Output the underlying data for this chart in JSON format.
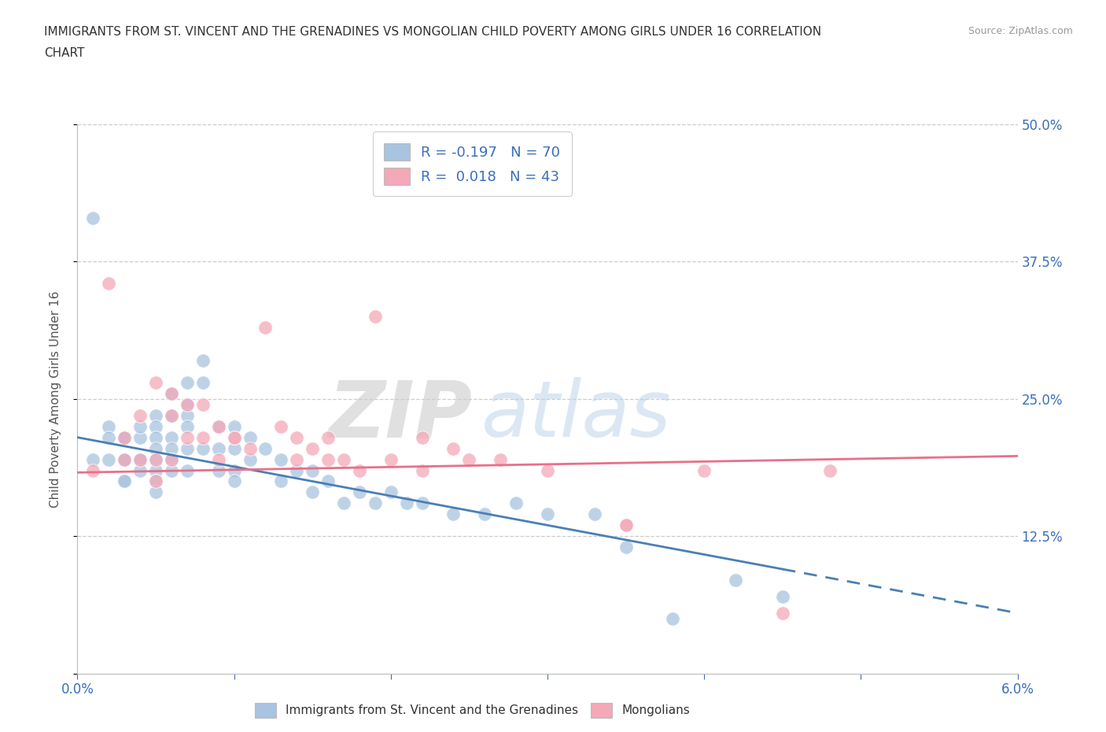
{
  "title_line1": "IMMIGRANTS FROM ST. VINCENT AND THE GRENADINES VS MONGOLIAN CHILD POVERTY AMONG GIRLS UNDER 16 CORRELATION",
  "title_line2": "CHART",
  "source_text": "Source: ZipAtlas.com",
  "ylabel": "Child Poverty Among Girls Under 16",
  "xlim": [
    0.0,
    0.06
  ],
  "ylim": [
    0.0,
    0.5
  ],
  "xticks": [
    0.0,
    0.01,
    0.02,
    0.03,
    0.04,
    0.05,
    0.06
  ],
  "xticklabels": [
    "0.0%",
    "",
    "",
    "",
    "",
    "",
    "6.0%"
  ],
  "yticks": [
    0.0,
    0.125,
    0.25,
    0.375,
    0.5
  ],
  "yticklabels": [
    "",
    "12.5%",
    "25.0%",
    "37.5%",
    "50.0%"
  ],
  "legend1_text": "R = -0.197   N = 70",
  "legend2_text": "R =  0.018   N = 43",
  "blue_color": "#a8c4e0",
  "pink_color": "#f4a8b8",
  "blue_line_color": "#4a7fb5",
  "pink_line_color": "#e8708a",
  "blue_scatter_x": [
    0.001,
    0.001,
    0.002,
    0.002,
    0.002,
    0.003,
    0.003,
    0.003,
    0.003,
    0.003,
    0.003,
    0.004,
    0.004,
    0.004,
    0.004,
    0.004,
    0.005,
    0.005,
    0.005,
    0.005,
    0.005,
    0.005,
    0.005,
    0.005,
    0.006,
    0.006,
    0.006,
    0.006,
    0.006,
    0.006,
    0.007,
    0.007,
    0.007,
    0.007,
    0.007,
    0.007,
    0.008,
    0.008,
    0.008,
    0.009,
    0.009,
    0.009,
    0.01,
    0.01,
    0.01,
    0.01,
    0.011,
    0.011,
    0.012,
    0.013,
    0.013,
    0.014,
    0.015,
    0.015,
    0.016,
    0.017,
    0.018,
    0.019,
    0.02,
    0.021,
    0.022,
    0.024,
    0.026,
    0.028,
    0.03,
    0.033,
    0.035,
    0.038,
    0.042,
    0.045
  ],
  "blue_scatter_y": [
    0.415,
    0.195,
    0.225,
    0.195,
    0.215,
    0.215,
    0.215,
    0.195,
    0.195,
    0.175,
    0.175,
    0.215,
    0.225,
    0.195,
    0.195,
    0.185,
    0.235,
    0.225,
    0.215,
    0.205,
    0.195,
    0.185,
    0.175,
    0.165,
    0.255,
    0.235,
    0.215,
    0.205,
    0.195,
    0.185,
    0.265,
    0.245,
    0.235,
    0.225,
    0.205,
    0.185,
    0.285,
    0.265,
    0.205,
    0.225,
    0.205,
    0.185,
    0.225,
    0.205,
    0.185,
    0.175,
    0.215,
    0.195,
    0.205,
    0.195,
    0.175,
    0.185,
    0.185,
    0.165,
    0.175,
    0.155,
    0.165,
    0.155,
    0.165,
    0.155,
    0.155,
    0.145,
    0.145,
    0.155,
    0.145,
    0.145,
    0.115,
    0.05,
    0.085,
    0.07
  ],
  "pink_scatter_x": [
    0.001,
    0.002,
    0.003,
    0.003,
    0.004,
    0.004,
    0.005,
    0.005,
    0.005,
    0.006,
    0.006,
    0.006,
    0.007,
    0.007,
    0.008,
    0.008,
    0.009,
    0.009,
    0.01,
    0.01,
    0.011,
    0.012,
    0.013,
    0.014,
    0.014,
    0.015,
    0.016,
    0.016,
    0.017,
    0.018,
    0.019,
    0.02,
    0.022,
    0.022,
    0.024,
    0.025,
    0.027,
    0.03,
    0.035,
    0.04,
    0.045,
    0.048,
    0.035
  ],
  "pink_scatter_y": [
    0.185,
    0.355,
    0.215,
    0.195,
    0.235,
    0.195,
    0.265,
    0.195,
    0.175,
    0.255,
    0.235,
    0.195,
    0.245,
    0.215,
    0.245,
    0.215,
    0.225,
    0.195,
    0.215,
    0.215,
    0.205,
    0.315,
    0.225,
    0.215,
    0.195,
    0.205,
    0.215,
    0.195,
    0.195,
    0.185,
    0.325,
    0.195,
    0.215,
    0.185,
    0.205,
    0.195,
    0.195,
    0.185,
    0.135,
    0.185,
    0.055,
    0.185,
    0.135
  ],
  "blue_trend_x0": 0.0,
  "blue_trend_x_solid_end": 0.045,
  "blue_trend_x1": 0.06,
  "blue_trend_y0": 0.215,
  "blue_trend_y1": 0.055,
  "pink_trend_x0": 0.0,
  "pink_trend_x1": 0.06,
  "pink_trend_y0": 0.183,
  "pink_trend_y1": 0.198
}
